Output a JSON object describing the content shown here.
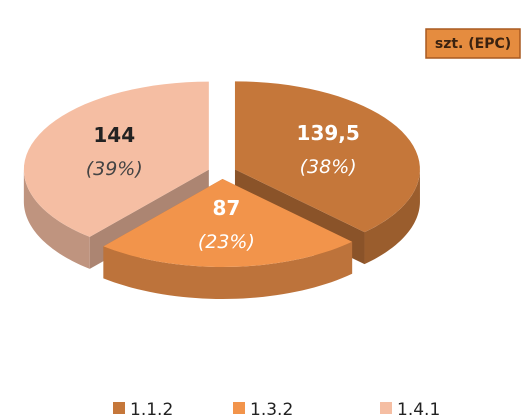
{
  "chart_data": {
    "type": "pie3d",
    "categories": [
      "1.1.2",
      "1.3.2",
      "1.4.1"
    ],
    "values": [
      139.5,
      87,
      144
    ],
    "value_labels": [
      "139,5",
      "87",
      "144"
    ],
    "percent_labels": [
      "(38%)",
      "(23%)",
      "(39%)"
    ],
    "colors": [
      "#c5773a",
      "#f2944b",
      "#f5bea3"
    ],
    "annotation": "szt. (EPC)",
    "legend": "bottom"
  }
}
